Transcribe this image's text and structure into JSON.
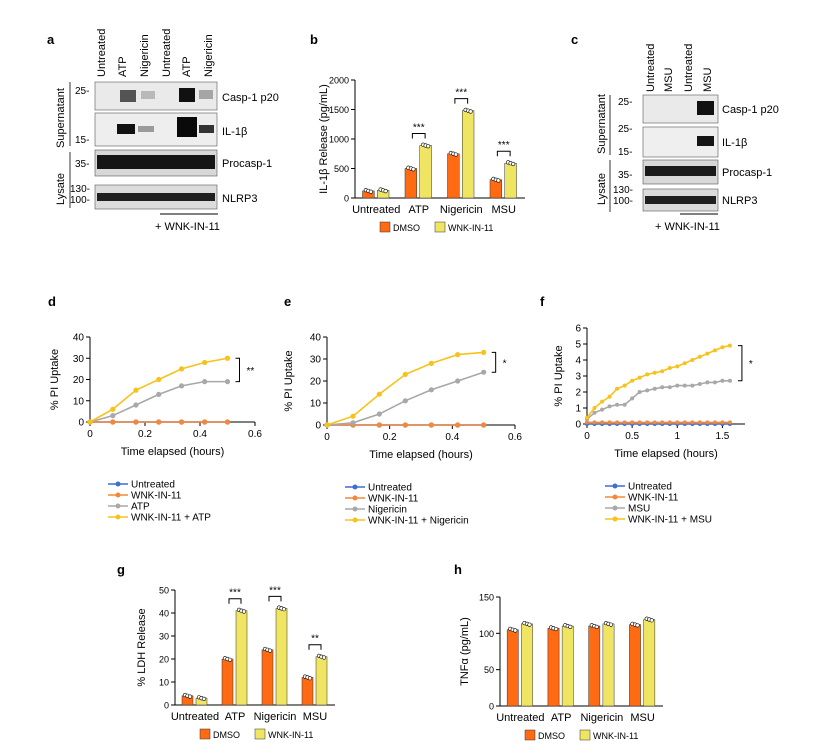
{
  "panel_letters": {
    "a": "a",
    "b": "b",
    "c": "c",
    "d": "d",
    "e": "e",
    "f": "f",
    "g": "g",
    "h": "h"
  },
  "colors": {
    "dmso": "#ff6a13",
    "wnk": "#f0e463",
    "untreated": "#3b6fd4",
    "wnk_only": "#f4883a",
    "stim": "#a8a8a8",
    "wnk_stim": "#f7c21b"
  },
  "blot_a": {
    "lanes": [
      "Untreated",
      "ATP",
      "Nigericin",
      "Untreated",
      "ATP",
      "Nigericin"
    ],
    "groups": {
      "sup": "Supernatant",
      "lys": "Lysate"
    },
    "rows": [
      "Casp-1 p20",
      "IL-1β",
      "Procasp-1",
      "NLRP3"
    ],
    "markers": [
      "25-",
      "15-",
      "35-",
      "130-",
      "100-"
    ],
    "treatment": "+ WNK-IN-11"
  },
  "blot_c": {
    "lanes": [
      "Untreated",
      "MSU",
      "Untreated",
      "MSU"
    ],
    "groups": {
      "sup": "Supernatant",
      "lys": "Lysate"
    },
    "rows": [
      "Casp-1 p20",
      "IL-1β",
      "Procasp-1",
      "NLRP3"
    ],
    "markers": [
      "25-",
      "25-",
      "15-",
      "35-",
      "130-",
      "100-"
    ],
    "treatment": "+ WNK-IN-11"
  },
  "chart_data": [
    {
      "panel": "b",
      "type": "bar",
      "ylabel": "IL-1β Release (pg/mL)",
      "ylim": [
        0,
        2000
      ],
      "yticks": [
        "0",
        "500",
        "1000",
        "1500",
        "2000"
      ],
      "categories": [
        "Untreated",
        "ATP",
        "Nigericin",
        "MSU"
      ],
      "series": [
        {
          "name": "DMSO",
          "values": [
            120,
            500,
            750,
            310
          ]
        },
        {
          "name": "WNK-IN-11",
          "values": [
            130,
            890,
            1480,
            590
          ]
        }
      ],
      "significance": [
        "",
        "***",
        "***",
        "***"
      ]
    },
    {
      "panel": "d",
      "type": "line",
      "xlabel": "Time elapsed (hours)",
      "ylabel": "% PI Uptake",
      "xlim": [
        0,
        0.6
      ],
      "ylim": [
        0,
        40
      ],
      "xticks": [
        "0",
        "0.2",
        "0.4",
        "0.6"
      ],
      "yticks": [
        "0",
        "10",
        "20",
        "30",
        "40"
      ],
      "x": [
        0,
        0.083,
        0.167,
        0.25,
        0.333,
        0.417,
        0.5
      ],
      "series": [
        {
          "name": "Untreated",
          "values": [
            0,
            0,
            0,
            0,
            0,
            0,
            0
          ]
        },
        {
          "name": "WNK-IN-11",
          "values": [
            0,
            0,
            0,
            0,
            0,
            0,
            0
          ]
        },
        {
          "name": "ATP",
          "values": [
            0,
            3,
            8,
            13,
            17,
            19,
            19
          ]
        },
        {
          "name": "WNK-IN-11 + ATP",
          "values": [
            0,
            6,
            15,
            20,
            25,
            28,
            30
          ]
        }
      ],
      "significance": "**"
    },
    {
      "panel": "e",
      "type": "line",
      "xlabel": "Time elapsed (hours)",
      "ylabel": "% PI Uptake",
      "xlim": [
        0,
        0.6
      ],
      "ylim": [
        0,
        40
      ],
      "xticks": [
        "0",
        "0.2",
        "0.4",
        "0.6"
      ],
      "yticks": [
        "0",
        "10",
        "20",
        "30",
        "40"
      ],
      "x": [
        0,
        0.083,
        0.167,
        0.25,
        0.333,
        0.417,
        0.5
      ],
      "series": [
        {
          "name": "Untreated",
          "values": [
            0,
            0,
            0,
            0,
            0,
            0,
            0
          ]
        },
        {
          "name": "WNK-IN-11",
          "values": [
            0,
            0,
            0,
            0,
            0,
            0,
            0
          ]
        },
        {
          "name": "Nigericin",
          "values": [
            0,
            1,
            5,
            11,
            16,
            20,
            24
          ]
        },
        {
          "name": "WNK-IN-11 + Nigericin",
          "values": [
            0,
            4,
            14,
            23,
            28,
            32,
            33
          ]
        }
      ],
      "significance": "*"
    },
    {
      "panel": "f",
      "type": "line",
      "xlabel": "Time elapsed (hours)",
      "ylabel": "% PI Uptake",
      "xlim": [
        0,
        1.75
      ],
      "ylim": [
        0,
        6
      ],
      "xticks": [
        "0",
        "0.5",
        "1",
        "1.5"
      ],
      "yticks": [
        "0",
        "1",
        "2",
        "3",
        "4",
        "5",
        "6"
      ],
      "x": [
        0,
        0.083,
        0.167,
        0.25,
        0.333,
        0.417,
        0.5,
        0.583,
        0.667,
        0.75,
        0.833,
        0.917,
        1.0,
        1.083,
        1.167,
        1.25,
        1.333,
        1.417,
        1.5,
        1.583
      ],
      "series": [
        {
          "name": "Untreated",
          "values": [
            0,
            0,
            0,
            0,
            0,
            0,
            0,
            0,
            0,
            0,
            0,
            0,
            0,
            0,
            0,
            0,
            0,
            0,
            0,
            0
          ]
        },
        {
          "name": "WNK-IN-11",
          "values": [
            0.1,
            0.1,
            0.1,
            0.1,
            0.1,
            0.1,
            0.1,
            0.1,
            0.1,
            0.1,
            0.1,
            0.1,
            0.1,
            0.1,
            0.1,
            0.1,
            0.1,
            0.1,
            0.1,
            0.1
          ]
        },
        {
          "name": "MSU",
          "values": [
            0.3,
            0.7,
            0.9,
            1.1,
            1.2,
            1.2,
            1.6,
            2.0,
            2.1,
            2.2,
            2.3,
            2.3,
            2.4,
            2.4,
            2.4,
            2.5,
            2.6,
            2.6,
            2.7,
            2.7
          ]
        },
        {
          "name": "WNK-IN-11 + MSU",
          "values": [
            0.4,
            1.0,
            1.4,
            1.7,
            2.2,
            2.4,
            2.7,
            2.9,
            3.1,
            3.2,
            3.3,
            3.5,
            3.6,
            3.8,
            4.0,
            4.2,
            4.4,
            4.6,
            4.8,
            4.9
          ]
        }
      ],
      "significance": "*"
    },
    {
      "panel": "g",
      "type": "bar",
      "ylabel": "% LDH Release",
      "ylim": [
        0,
        50
      ],
      "yticks": [
        "0",
        "10",
        "20",
        "30",
        "40",
        "50"
      ],
      "categories": [
        "Untreated",
        "ATP",
        "Nigericin",
        "MSU"
      ],
      "series": [
        {
          "name": "DMSO",
          "values": [
            4,
            20,
            24,
            12
          ]
        },
        {
          "name": "WNK-IN-11",
          "values": [
            3,
            41,
            42,
            21
          ]
        }
      ],
      "significance": [
        "",
        "***",
        "***",
        "**"
      ]
    },
    {
      "panel": "h",
      "type": "bar",
      "ylabel": "TNFα (pg/mL)",
      "ylim": [
        0,
        150
      ],
      "yticks": [
        "0",
        "50",
        "100",
        "150"
      ],
      "categories": [
        "Untreated",
        "ATP",
        "Nigericin",
        "MSU"
      ],
      "series": [
        {
          "name": "DMSO",
          "values": [
            105,
            107,
            110,
            112
          ]
        },
        {
          "name": "WNK-IN-11",
          "values": [
            113,
            110,
            113,
            119
          ]
        }
      ],
      "significance": [
        "",
        "",
        "",
        ""
      ]
    }
  ]
}
